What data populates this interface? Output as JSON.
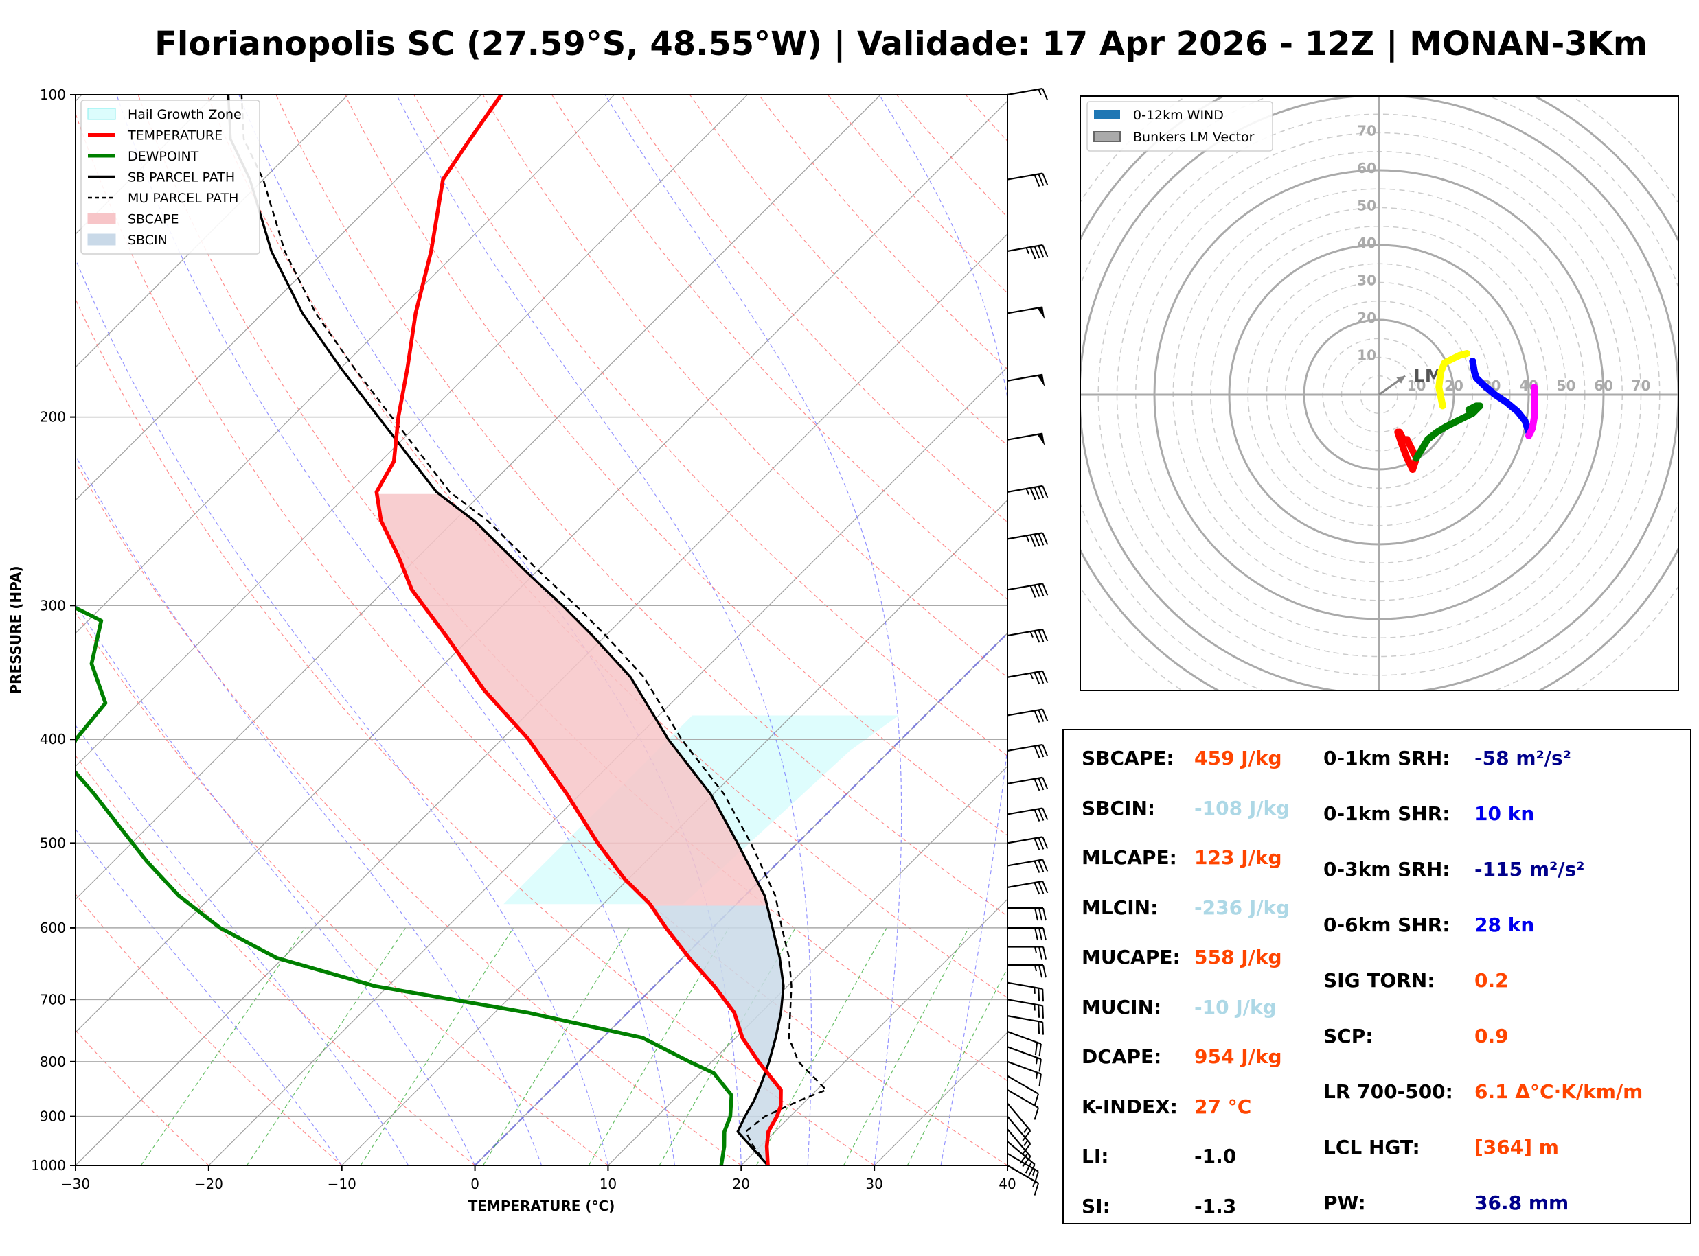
{
  "title": "Florianopolis SC (27.59°S, 48.55°W) | Validade: 17 Apr 2026 - 12Z | MONAN-3Km",
  "colors": {
    "temperature": "#ff0000",
    "dewpoint": "#008000",
    "parcel": "#000000",
    "sbcape": "#f7c5c8",
    "sbcin": "#c9d9e8",
    "hail": "#dcfdfd",
    "isotherm": "#888888",
    "dry_adiabat": "#ff6666",
    "moist_adiabat": "#6666ff",
    "mixing_ratio": "#33aa33",
    "hodo_0_1": "#ff0000",
    "hodo_1_3": "#008000",
    "hodo_3_6": "#ffff00",
    "hodo_6_9": "#0000ff",
    "hodo_9_12": "#ff00ff",
    "val_orange": "#ff4500",
    "val_lightblue": "#add8e6",
    "val_navy": "#00008b",
    "val_blue": "#0000ee",
    "val_black": "#000000"
  },
  "chart_data": [
    {
      "type": "line",
      "name": "skew-t",
      "xlabel": "TEMPERATURE (°C)",
      "ylabel": "PRESSURE (HPA)",
      "xlim": [
        -30,
        40
      ],
      "ylim": [
        1000,
        100
      ],
      "skew": 45,
      "xticks": [
        "−30",
        "−20",
        "−10",
        "0",
        "10",
        "20",
        "30",
        "40"
      ],
      "xtick_values": [
        -30,
        -20,
        -10,
        0,
        10,
        20,
        30,
        40
      ],
      "yticks": [
        "1000",
        "900",
        "800",
        "700",
        "600",
        "500",
        "400",
        "300",
        "200",
        "100"
      ],
      "ytick_values": [
        1000,
        900,
        800,
        700,
        600,
        500,
        400,
        300,
        200,
        100
      ],
      "legend": [
        "Hail Growth Zone",
        "TEMPERATURE",
        "DEWPOINT",
        "SB PARCEL PATH",
        "MU PARCEL PATH",
        "SBCAPE",
        "SBCIN"
      ],
      "legend_position": "top-left",
      "hail_growth_zone": {
        "p_bottom": 570,
        "p_top": 380
      },
      "series": [
        {
          "name": "TEMPERATURE",
          "p": [
            1000,
            960,
            930,
            900,
            880,
            850,
            800,
            760,
            720,
            680,
            640,
            600,
            570,
            540,
            500,
            450,
            400,
            360,
            320,
            290,
            270,
            250,
            235,
            220,
            200,
            180,
            160,
            140,
            120,
            110,
            100
          ],
          "t": [
            22,
            20.5,
            19.5,
            19.0,
            18.5,
            17.3,
            13.5,
            10.5,
            8.0,
            4.5,
            0.5,
            -3.5,
            -6.5,
            -10.3,
            -15,
            -21,
            -28,
            -35,
            -42,
            -48,
            -51.5,
            -55.5,
            -58,
            -59,
            -62,
            -65,
            -68.5,
            -72,
            -76.5,
            -77.5,
            -78.5
          ]
        },
        {
          "name": "DEWPOINT",
          "p": [
            1000,
            960,
            930,
            900,
            860,
            820,
            800,
            760,
            720,
            680,
            640,
            600,
            560,
            520,
            480,
            450,
            420,
            400,
            370,
            340,
            310,
            275,
            250,
            230,
            200,
            180,
            160,
            140,
            120,
            110,
            100
          ],
          "t": [
            18.5,
            17.3,
            16.2,
            15.5,
            14.0,
            11.0,
            8.3,
            3.0,
            -7.5,
            -21,
            -30.5,
            -37,
            -42.5,
            -47.5,
            -52.5,
            -56.5,
            -61,
            -62,
            -62.5,
            -66.5,
            -69,
            -81.5,
            -87.5,
            -92,
            -96,
            -100,
            -103.5,
            -109,
            -114,
            -115,
            -116
          ]
        },
        {
          "name": "SB PARCEL PATH",
          "p": [
            1000,
            960,
            930,
            900,
            870,
            840,
            800,
            760,
            720,
            680,
            640,
            600,
            560,
            500,
            450,
            400,
            350,
            320,
            300,
            280,
            250,
            235,
            200,
            180,
            160,
            140,
            120,
            110,
            100
          ],
          "t": [
            22,
            19.3,
            17.2,
            16.6,
            16.1,
            15.4,
            14.3,
            13.0,
            11.5,
            9.7,
            7.3,
            4.5,
            1.5,
            -4.5,
            -10.2,
            -17.5,
            -25.0,
            -31.0,
            -35.5,
            -40.5,
            -48.5,
            -53.5,
            -63.5,
            -70,
            -77,
            -84,
            -91,
            -95.5,
            -99
          ]
        },
        {
          "name": "MU PARCEL PATH",
          "p": [
            1000,
            960,
            930,
            900,
            870,
            850,
            800,
            760,
            720,
            680,
            640,
            600,
            560,
            500,
            450,
            400,
            350,
            320,
            300,
            280,
            250,
            235,
            200,
            180,
            160,
            140,
            120,
            110,
            100
          ],
          "t": [
            22,
            19.5,
            17.8,
            18.1,
            19.5,
            20.7,
            16.5,
            14.0,
            12.2,
            10.3,
            8.0,
            5.2,
            2.3,
            -3.5,
            -9.2,
            -16.5,
            -24.0,
            -30.0,
            -34.5,
            -39.5,
            -47.5,
            -52.5,
            -62.5,
            -69,
            -76,
            -83,
            -90,
            -94.5,
            -98
          ]
        }
      ],
      "wind_barbs": {
        "p": [
          1000,
          975,
          950,
          925,
          900,
          875,
          850,
          825,
          800,
          775,
          750,
          725,
          700,
          675,
          650,
          625,
          600,
          575,
          550,
          525,
          500,
          470,
          440,
          410,
          380,
          350,
          320,
          290,
          260,
          235,
          210,
          185,
          160,
          140,
          120,
          100
        ],
        "speed_kt": [
          15,
          15,
          20,
          20,
          15,
          15,
          10,
          10,
          15,
          15,
          20,
          20,
          25,
          25,
          25,
          25,
          30,
          30,
          30,
          30,
          30,
          30,
          30,
          30,
          30,
          35,
          35,
          40,
          45,
          45,
          50,
          50,
          50,
          45,
          30,
          15
        ],
        "direction_deg": [
          300,
          300,
          310,
          320,
          320,
          320,
          300,
          300,
          290,
          290,
          290,
          280,
          280,
          280,
          270,
          270,
          270,
          270,
          260,
          260,
          260,
          260,
          260,
          260,
          260,
          260,
          260,
          260,
          260,
          260,
          260,
          260,
          260,
          260,
          260,
          260
        ]
      }
    },
    {
      "type": "line",
      "name": "hodograph",
      "legend": [
        "0-12km WIND",
        "Bunkers LM Vector"
      ],
      "legend_position": "top-left",
      "ring_labels": [
        "10",
        "20",
        "30",
        "40",
        "50",
        "60",
        "70"
      ],
      "ring_values": [
        10,
        20,
        30,
        40,
        50,
        60,
        70
      ],
      "lm_label": "LM",
      "lm_vector": {
        "u": 7,
        "v": 5
      },
      "series": [
        {
          "name": "0-1km",
          "u": [
            5,
            6,
            7.5,
            9,
            10,
            8.5,
            7.5,
            6.5,
            5.5
          ],
          "v": [
            -10,
            -13,
            -17,
            -20,
            -17,
            -14,
            -12,
            -12,
            -10
          ]
        },
        {
          "name": "1-3km",
          "u": [
            10,
            13,
            15.5,
            18,
            21,
            25,
            27,
            26,
            24
          ],
          "v": [
            -17,
            -12,
            -10,
            -8.5,
            -7,
            -5,
            -3,
            -3,
            -4
          ]
        },
        {
          "name": "3-6km",
          "u": [
            17,
            16,
            16.5,
            17.5,
            19.5,
            21.5,
            23.5
          ],
          "v": [
            -3,
            2,
            6,
            8.5,
            9.5,
            10.5,
            11
          ]
        },
        {
          "name": "6-9km",
          "u": [
            25,
            25.5,
            26,
            28,
            31,
            34,
            37,
            39,
            40
          ],
          "v": [
            9,
            6,
            4.5,
            2.5,
            0,
            -2,
            -4.5,
            -7,
            -10
          ]
        },
        {
          "name": "9-12km",
          "u": [
            40,
            41,
            41.5,
            41.5,
            41.5,
            41.5,
            41.5
          ],
          "v": [
            -11,
            -9,
            -6,
            -3,
            0,
            2,
            1
          ]
        }
      ]
    }
  ],
  "indices": {
    "left": [
      {
        "label": "SBCAPE:",
        "value": "459 J/kg",
        "color": "val_orange"
      },
      {
        "label": "SBCIN:",
        "value": "-108 J/kg",
        "color": "val_lightblue"
      },
      {
        "label": "MLCAPE:",
        "value": "123 J/kg",
        "color": "val_orange"
      },
      {
        "label": "MLCIN:",
        "value": "-236 J/kg",
        "color": "val_lightblue"
      },
      {
        "label": "MUCAPE:",
        "value": "558 J/kg",
        "color": "val_orange"
      },
      {
        "label": "MUCIN:",
        "value": "-10 J/kg",
        "color": "val_lightblue"
      },
      {
        "label": "DCAPE:",
        "value": "954 J/kg",
        "color": "val_orange"
      },
      {
        "label": "K-INDEX:",
        "value": "27 °C",
        "color": "val_orange"
      },
      {
        "label": "LI:",
        "value": "-1.0",
        "color": "val_black"
      },
      {
        "label": "SI:",
        "value": "-1.3",
        "color": "val_black"
      }
    ],
    "right": [
      {
        "label": "0-1km SRH:",
        "value": "-58 m²/s²",
        "color": "val_navy"
      },
      {
        "label": "0-1km SHR:",
        "value": "10 kn",
        "color": "val_blue"
      },
      {
        "label": "0-3km SRH:",
        "value": "-115 m²/s²",
        "color": "val_navy"
      },
      {
        "label": "0-6km SHR:",
        "value": "28 kn",
        "color": "val_blue"
      },
      {
        "label": "SIG TORN:",
        "value": "0.2",
        "color": "val_orange"
      },
      {
        "label": "SCP:",
        "value": "0.9",
        "color": "val_orange"
      },
      {
        "label": "LR 700-500:",
        "value": "6.1 Δ°C·K/km/m",
        "color": "val_orange"
      },
      {
        "label": "LCL HGT:",
        "value": "[364] m",
        "color": "val_orange"
      },
      {
        "label": "PW:",
        "value": "36.8 mm",
        "color": "val_navy"
      }
    ]
  }
}
